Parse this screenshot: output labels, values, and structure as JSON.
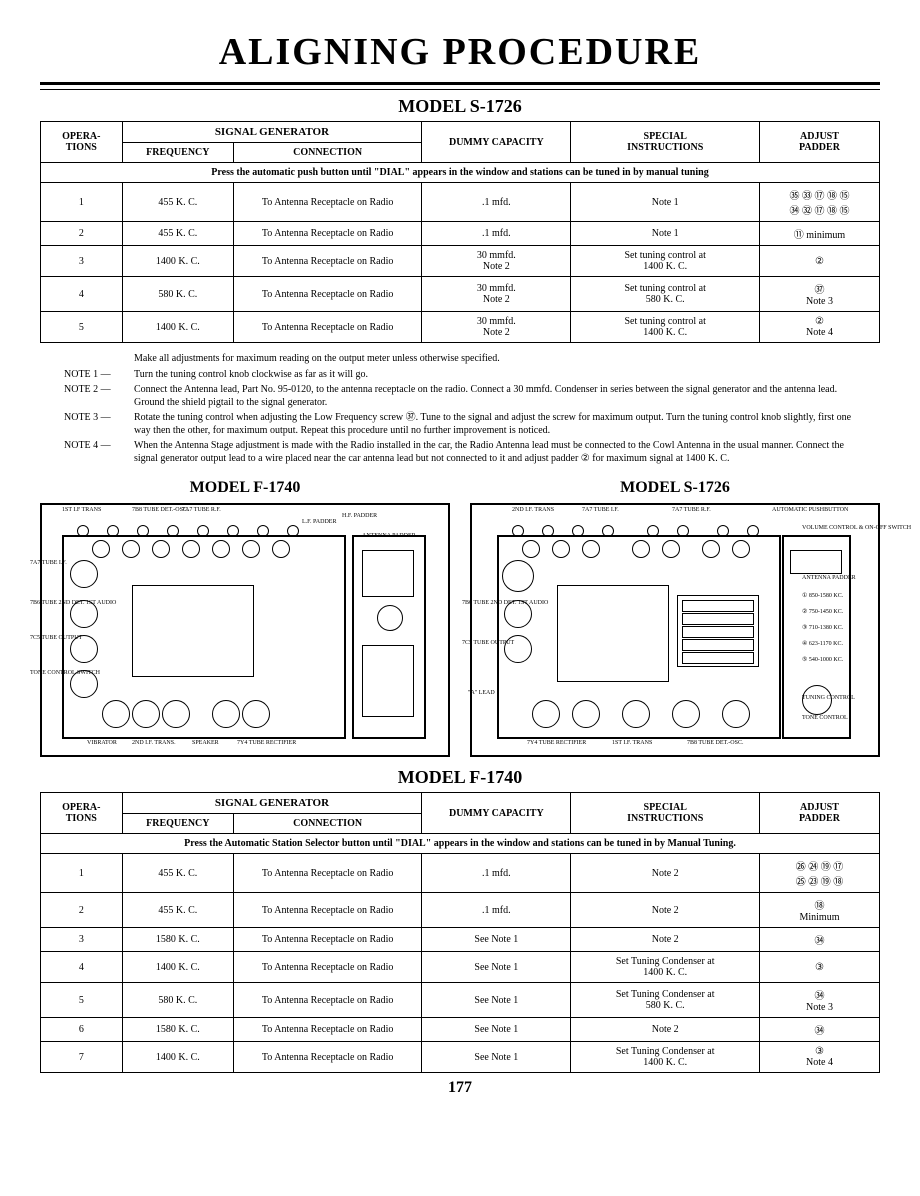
{
  "page": {
    "title": "ALIGNING PROCEDURE",
    "number": "177"
  },
  "model1": {
    "heading": "MODEL S-1726",
    "headers": {
      "operations": "OPERA-\nTIONS",
      "signal_generator": "SIGNAL GENERATOR",
      "frequency": "FREQUENCY",
      "connection": "CONNECTION",
      "dummy": "DUMMY CAPACITY",
      "special": "SPECIAL\nINSTRUCTIONS",
      "padder": "ADJUST\nPADDER"
    },
    "banner": "Press the automatic push button until \"DIAL\" appears in the window and stations can be tuned in by manual tuning",
    "rows": [
      {
        "op": "1",
        "freq": "455 K. C.",
        "conn": "To Antenna Receptacle on Radio",
        "dummy": ".1 mfd.",
        "spec": "Note 1",
        "pad": "㉟ ㉝ ⑰ ⑱ ⑮\n㉞ ㉜ ⑰ ⑱ ⑮"
      },
      {
        "op": "2",
        "freq": "455 K. C.",
        "conn": "To Antenna Receptacle on Radio",
        "dummy": ".1 mfd.",
        "spec": "Note 1",
        "pad": "⑪ minimum"
      },
      {
        "op": "3",
        "freq": "1400 K. C.",
        "conn": "To Antenna Receptacle on Radio",
        "dummy": "30 mmfd.\nNote 2",
        "spec": "Set tuning control at\n1400 K. C.",
        "pad": "②"
      },
      {
        "op": "4",
        "freq": "580 K. C.",
        "conn": "To Antenna Receptacle on Radio",
        "dummy": "30 mmfd.\nNote 2",
        "spec": "Set tuning control at\n580 K. C.",
        "pad": "㊲\nNote 3"
      },
      {
        "op": "5",
        "freq": "1400 K. C.",
        "conn": "To Antenna Receptacle on Radio",
        "dummy": "30 mmfd.\nNote 2",
        "spec": "Set tuning control at\n1400 K. C.",
        "pad": "②\nNote 4"
      }
    ]
  },
  "notes": {
    "intro": "Make all adjustments for maximum reading on the output meter unless otherwise specified.",
    "items": [
      {
        "label": "NOTE 1 —",
        "text": "Turn the tuning control knob clockwise as far as it will go."
      },
      {
        "label": "NOTE 2 —",
        "text": "Connect the Antenna lead, Part No. 95-0120, to the antenna receptacle on the radio. Connect a 30 mmfd. Condenser in series between the signal generator and the antenna lead. Ground the shield pigtail to the signal generator."
      },
      {
        "label": "NOTE 3 —",
        "text": "Rotate the tuning control when adjusting the Low Frequency screw ㊲. Tune to the signal and adjust the screw for maximum output. Turn the tuning control knob slightly, first one way then the other, for maximum output. Repeat this procedure until no further improvement is noticed."
      },
      {
        "label": "NOTE 4 —",
        "text": "When the Antenna Stage adjustment is made with the Radio installed in the car, the Radio Antenna lead must be connected to the Cowl Antenna in the usual manner. Connect the signal generator output lead to a wire placed near the car antenna lead but not connected to it and adjust padder ② for maximum signal at 1400 K. C."
      }
    ]
  },
  "diagrams": {
    "left_title": "MODEL F-1740",
    "right_title": "MODEL S-1726",
    "left_labels": {
      "t1": "1ST I.F TRANS",
      "t2": "7B8 TUBE DET.-OSC.",
      "t3": "7A7 TUBE R.F.",
      "t4": "H.F. PADDER",
      "t5": "L.F. PADDER",
      "t6": "ANTENNA PADDER",
      "l1": "7A7 TUBE I.F.",
      "l2": "7B6 TUBE 2ND DET. 1ST AUDIO",
      "l3": "7C5 TUBE OUTPUT",
      "l4": "TONE CONTROL SWITCH",
      "b1": "VIBRATOR",
      "b2": "2ND I.F. TRANS.",
      "b3": "SPEAKER",
      "b4": "7Y4 TUBE RECTIFIER"
    },
    "right_labels": {
      "t1": "2ND I.F. TRANS",
      "t2": "7A7 TUBE I.F.",
      "t3": "7A7 TUBE R.F.",
      "t4": "AUTOMATIC PUSHBUTTON",
      "t5": "VOLUME CONTROL & ON-OFF SWITCH",
      "l1": "7B6 TUBE 2ND DET. 1ST AUDIO",
      "l2": "7C5 TUBE OUTPUT",
      "l3": "\"A\" LEAD",
      "r1": "ANTENNA PADDER",
      "r2": "850-1580 KC.",
      "r3": "750-1450 KC.",
      "r4": "710-1380 KC.",
      "r5": "623-1170 KC.",
      "r6": "540-1000 KC.",
      "r7": "TUNING CONTROL",
      "r8": "TONE CONTROL",
      "b1": "7Y4 TUBE RECTIFIER",
      "b2": "1ST I.F. TRANS",
      "b3": "7B8 TUBE DET.-OSC."
    }
  },
  "model2": {
    "heading": "MODEL F-1740",
    "banner": "Press the Automatic Station Selector button until \"DIAL\" appears in the window and stations can be tuned in by Manual Tuning.",
    "rows": [
      {
        "op": "1",
        "freq": "455 K. C.",
        "conn": "To Antenna Receptacle on Radio",
        "dummy": ".1 mfd.",
        "spec": "Note 2",
        "pad": "㉖ ㉔ ⑲ ⑰\n㉕ ㉓ ⑲ ⑱"
      },
      {
        "op": "2",
        "freq": "455 K. C.",
        "conn": "To Antenna Receptacle on Radio",
        "dummy": ".1 mfd.",
        "spec": "Note 2",
        "pad": "⑱\nMinimum"
      },
      {
        "op": "3",
        "freq": "1580 K. C.",
        "conn": "To Antenna Receptacle on Radio",
        "dummy": "See Note 1",
        "spec": "Note 2",
        "pad": "㉞"
      },
      {
        "op": "4",
        "freq": "1400 K. C.",
        "conn": "To Antenna Receptacle on Radio",
        "dummy": "See Note 1",
        "spec": "Set Tuning Condenser at\n1400 K. C.",
        "pad": "③"
      },
      {
        "op": "5",
        "freq": "580 K. C.",
        "conn": "To Antenna Receptacle on Radio",
        "dummy": "See Note 1",
        "spec": "Set Tuning Condenser at\n580 K. C.",
        "pad": "㉞\nNote 3"
      },
      {
        "op": "6",
        "freq": "1580 K. C.",
        "conn": "To Antenna Receptacle on Radio",
        "dummy": "See Note 1",
        "spec": "Note 2",
        "pad": "㉞"
      },
      {
        "op": "7",
        "freq": "1400 K. C.",
        "conn": "To Antenna Receptacle on Radio",
        "dummy": "See Note 1",
        "spec": "Set Tuning Condenser at\n1400 K. C.",
        "pad": "③\nNote 4"
      }
    ]
  },
  "style": {
    "page_bg": "#ffffff",
    "text_color": "#000000",
    "title_fontsize": 38,
    "model_fontsize": 18,
    "table_fontsize": 10,
    "notes_fontsize": 10,
    "border_color": "#000000"
  }
}
